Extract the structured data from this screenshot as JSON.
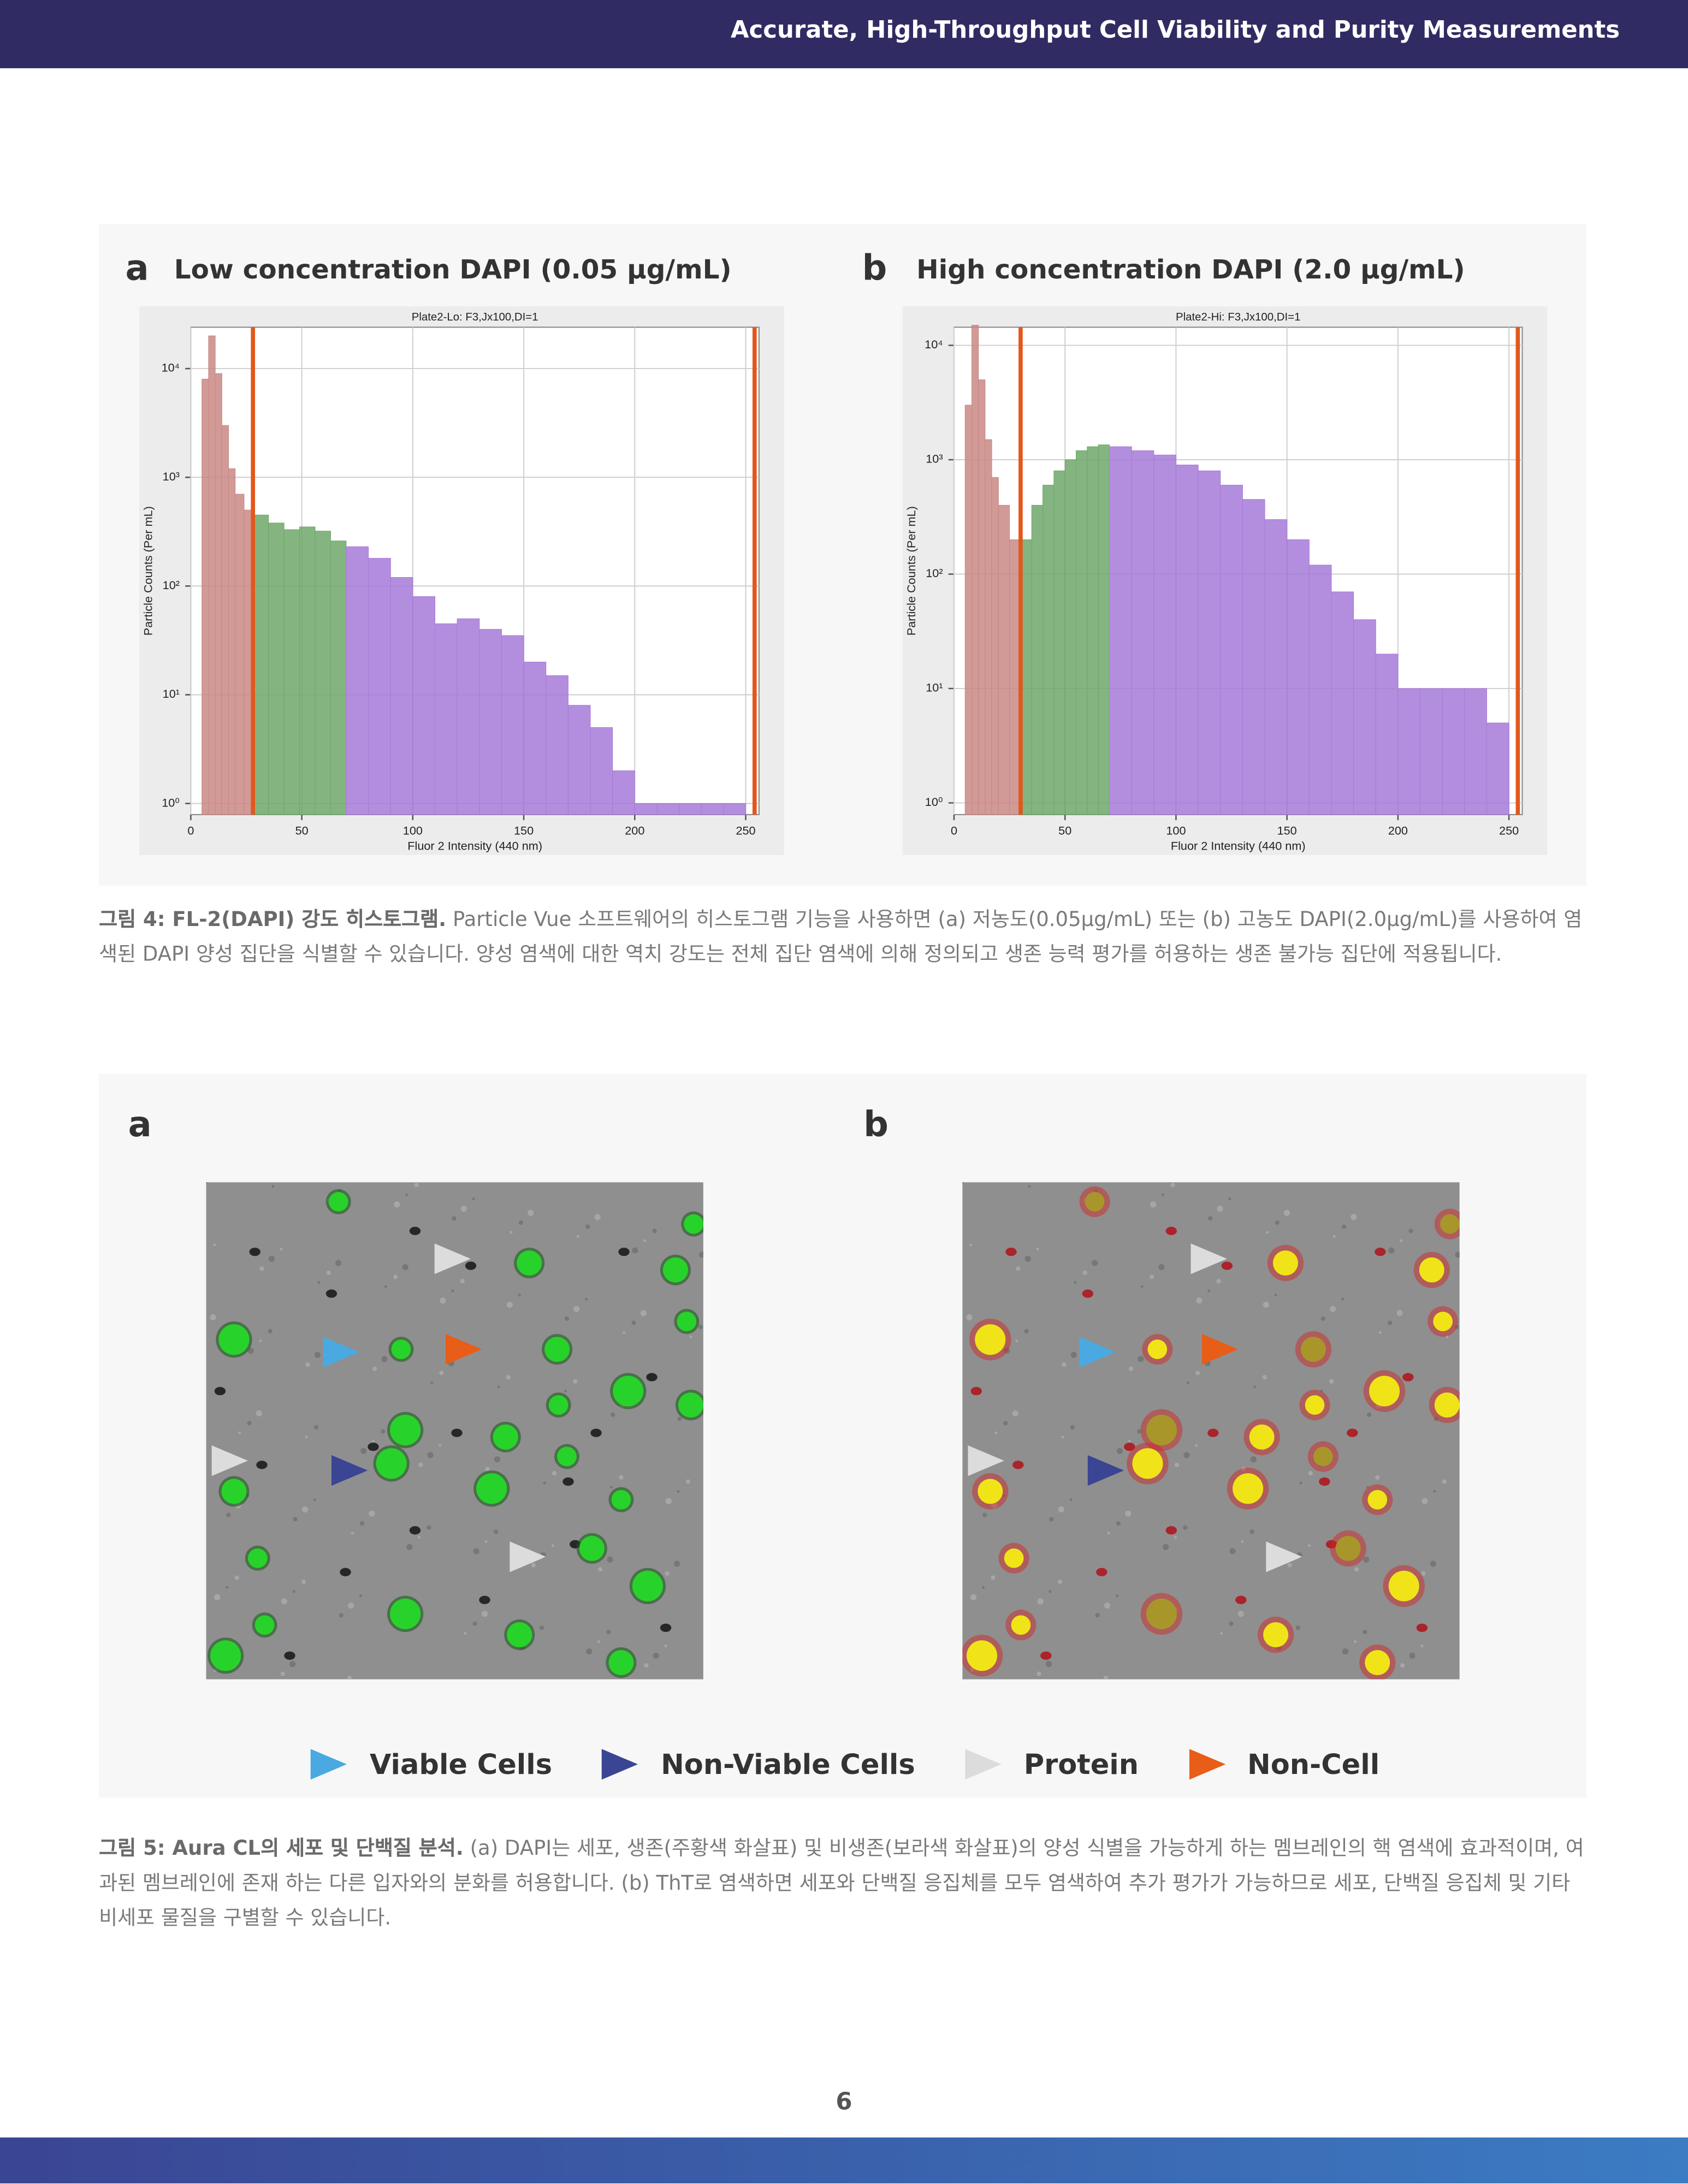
{
  "header": {
    "title": "Accurate, High-Throughput Cell Viability and Purity Measurements"
  },
  "figure4": {
    "panels": [
      {
        "label": "a",
        "title": "Low concentration DAPI (0.05 μg/mL)",
        "chart": {
          "type": "histogram",
          "title": "Plate2-Lo: F3,Jx100,DI=1",
          "xlabel": "Fluor 2 Intensity (440 nm)",
          "ylabel": "Particle Counts (Per mL)",
          "log_y": true,
          "grid": true,
          "xlim": [
            0,
            256
          ],
          "ylim": [
            0.79,
            24000
          ],
          "xticks": [
            0,
            50,
            100,
            150,
            200,
            250
          ],
          "yticks": [
            {
              "value": 1,
              "label": "10⁰"
            },
            {
              "value": 10,
              "label": "10¹"
            },
            {
              "value": 100,
              "label": "10²"
            },
            {
              "value": 1000,
              "label": "10³"
            },
            {
              "value": 10000,
              "label": "10⁴"
            }
          ],
          "gates": [
            28,
            254
          ],
          "gate_color": "#e2581c",
          "series": [
            {
              "color": "#c98884",
              "bins": [
                5,
                8,
                11,
                14,
                17,
                20,
                24,
                28
              ],
              "values": [
                8000,
                20000,
                9000,
                3000,
                1200,
                700,
                500
              ]
            },
            {
              "color": "#6fa86a",
              "bins": [
                28,
                35,
                42,
                49,
                56,
                63,
                70
              ],
              "values": [
                450,
                380,
                330,
                350,
                320,
                260
              ]
            },
            {
              "color": "#a77ad8",
              "bins": [
                70,
                80,
                90,
                100,
                110,
                120,
                130,
                140,
                150,
                160,
                170,
                180,
                190,
                200,
                210,
                220,
                230,
                240,
                250
              ],
              "values": [
                230,
                180,
                120,
                80,
                45,
                50,
                40,
                35,
                20,
                15,
                8,
                5,
                2,
                1,
                1,
                1,
                1,
                1
              ]
            }
          ]
        }
      },
      {
        "label": "b",
        "title": "High concentration DAPI (2.0 μg/mL)",
        "chart": {
          "type": "histogram",
          "title": "Plate2-Hi: F3,Jx100,DI=1",
          "xlabel": "Fluor 2 Intensity (440 nm)",
          "ylabel": "Particle Counts (Per mL)",
          "log_y": true,
          "grid": true,
          "xlim": [
            0,
            256
          ],
          "ylim": [
            0.79,
            14400
          ],
          "xticks": [
            0,
            50,
            100,
            150,
            200,
            250
          ],
          "yticks": [
            {
              "value": 1,
              "label": "10⁰"
            },
            {
              "value": 10,
              "label": "10¹"
            },
            {
              "value": 100,
              "label": "10²"
            },
            {
              "value": 1000,
              "label": "10³"
            },
            {
              "value": 10000,
              "label": "10⁴"
            }
          ],
          "gates": [
            30,
            254
          ],
          "gate_color": "#e2581c",
          "series": [
            {
              "color": "#c98884",
              "bins": [
                5,
                8,
                11,
                14,
                17,
                20,
                25,
                30
              ],
              "values": [
                3000,
                15000,
                5000,
                1500,
                700,
                400,
                200
              ]
            },
            {
              "color": "#6fa86a",
              "bins": [
                30,
                35,
                40,
                45,
                50,
                55,
                60,
                65,
                70
              ],
              "values": [
                200,
                400,
                600,
                800,
                1000,
                1200,
                1300,
                1350
              ]
            },
            {
              "color": "#a77ad8",
              "bins": [
                70,
                80,
                90,
                100,
                110,
                120,
                130,
                140,
                150,
                160,
                170,
                180,
                190,
                200,
                210,
                220,
                230,
                240,
                250
              ],
              "values": [
                1300,
                1200,
                1100,
                900,
                800,
                600,
                450,
                300,
                200,
                120,
                70,
                40,
                20,
                10,
                10,
                10,
                10,
                5
              ]
            }
          ]
        }
      }
    ],
    "caption": {
      "lead": "그림 4: FL-2(DAPI) 강도 히스토그램.",
      "text": "Particle Vue 소프트웨어의 히스토그램 기능을 사용하면 (a) 저농도(0.05μg/mL) 또는 (b) 고농도 DAPI(2.0μg/mL)를 사용하여 염색된 DAPI 양성 집단을 식별할 수 있습니다. 양성 염색에 대한 역치 강도는 전체 집단 염색에 의해 정의되고 생존 능력 평가를 허용하는 생존 불가능 집단에 적용됩니다."
    }
  },
  "figure5": {
    "panels": [
      {
        "label": "a"
      },
      {
        "label": "b"
      }
    ],
    "legend": [
      {
        "label": "Viable Cells",
        "color": "#4aa9e1"
      },
      {
        "label": "Non-Viable Cells",
        "color": "#3a4593"
      },
      {
        "label": "Protein",
        "color": "#dcdcdc"
      },
      {
        "label": "Non-Cell",
        "color": "#e85d17"
      }
    ],
    "caption": {
      "lead": "그림 5: Aura CL의 세포 및 단백질 분석.",
      "text": "(a) DAPI는 세포, 생존(주황색 화살표) 및 비생존(보라색 화살표)의 양성 식별을 가능하게 하는 멤브레인의 핵 염색에 효과적이며, 여과된 멤브레인에 존재 하는 다른 입자와의 분화를 허용합니다. (b) ThT로 염색하면 세포와 단백질 응집체를 모두 염색하여 추가 평가가 가능하므로 세포, 단백질 응집체 및 기타 비세포 물질을 구별할 수 있습니다."
    }
  },
  "page_number": 6
}
